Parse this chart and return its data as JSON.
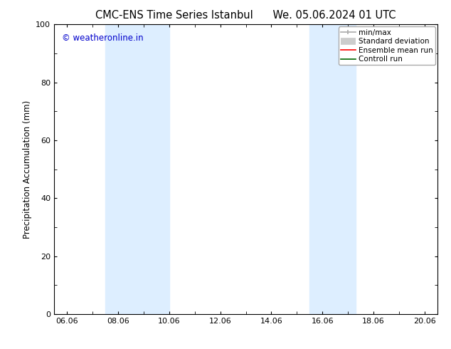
{
  "title": "CMC-ENS Time Series Istanbul      We. 05.06.2024 01 UTC",
  "ylabel": "Precipitation Accumulation (mm)",
  "watermark": "© weatheronline.in",
  "watermark_color": "#0000cc",
  "ylim": [
    0,
    100
  ],
  "yticks": [
    0,
    20,
    40,
    60,
    80,
    100
  ],
  "xtick_labels": [
    "06.06",
    "08.06",
    "10.06",
    "12.06",
    "14.06",
    "16.06",
    "18.06",
    "20.06"
  ],
  "xtick_positions": [
    0,
    2,
    4,
    6,
    8,
    10,
    12,
    14
  ],
  "xlim": [
    -0.5,
    14.5
  ],
  "shade_regions": [
    {
      "xmin": 1.5,
      "xmax": 4.0,
      "color": "#ddeeff"
    },
    {
      "xmin": 9.5,
      "xmax": 11.3,
      "color": "#ddeeff"
    }
  ],
  "legend_entries": [
    {
      "label": "min/max",
      "color": "#aaaaaa",
      "lw": 1.5
    },
    {
      "label": "Standard deviation",
      "color": "#cccccc",
      "lw": 6
    },
    {
      "label": "Ensemble mean run",
      "color": "#ff0000",
      "lw": 1.5
    },
    {
      "label": "Controll run",
      "color": "#006600",
      "lw": 1.5
    }
  ],
  "bg_color": "#ffffff",
  "title_fontsize": 10.5,
  "label_fontsize": 8.5,
  "tick_fontsize": 8,
  "legend_fontsize": 7.5
}
